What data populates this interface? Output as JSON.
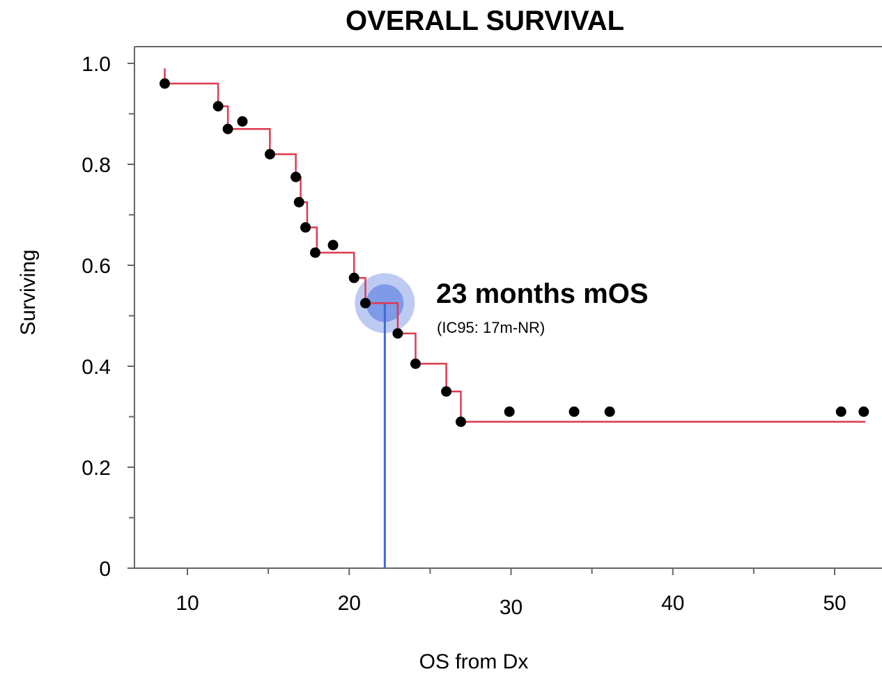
{
  "chart_data": {
    "type": "line",
    "title": "OVERALL SURVIVAL",
    "xlabel": "OS from Dx",
    "ylabel": "Surviving",
    "xlim": [
      6.4,
      52.8
    ],
    "ylim": [
      0,
      1.03
    ],
    "x_ticks": [
      10,
      20,
      30,
      40,
      50
    ],
    "x_minor_ticks": [
      15,
      25,
      35,
      45
    ],
    "y_ticks": [
      0,
      0.2,
      0.4,
      0.6,
      0.8,
      1.0
    ],
    "y_tick_labels": [
      "0",
      "0.2",
      "0.4",
      "0.6",
      "0.8",
      "1.0"
    ],
    "y_minor_ticks": [
      0.1,
      0.3,
      0.5,
      0.7,
      0.9
    ],
    "grid": false,
    "series": [
      {
        "kind": "step",
        "color": "#e0394e",
        "x": [
          8.6,
          8.6,
          11.9,
          11.9,
          12.5,
          12.5,
          15.1,
          15.1,
          16.7,
          16.7,
          17.0,
          17.0,
          17.4,
          17.4,
          18.0,
          18.0,
          20.3,
          20.3,
          21.0,
          21.0,
          23.0,
          23.0,
          24.1,
          24.1,
          26.0,
          26.0,
          26.9,
          26.9,
          51.9
        ],
        "y": [
          0.99,
          0.96,
          0.96,
          0.915,
          0.915,
          0.87,
          0.87,
          0.82,
          0.82,
          0.775,
          0.775,
          0.725,
          0.725,
          0.675,
          0.675,
          0.625,
          0.625,
          0.575,
          0.575,
          0.525,
          0.525,
          0.465,
          0.465,
          0.405,
          0.405,
          0.35,
          0.35,
          0.29,
          0.29
        ]
      },
      {
        "kind": "scatter",
        "color": "#000000",
        "x": [
          8.6,
          11.9,
          12.5,
          13.4,
          15.1,
          16.7,
          16.9,
          17.3,
          17.9,
          19.0,
          20.3,
          21.0,
          23.0,
          24.1,
          26.0,
          26.9,
          29.9,
          33.9,
          36.1,
          50.4,
          51.8
        ],
        "y": [
          0.96,
          0.915,
          0.87,
          0.885,
          0.82,
          0.775,
          0.725,
          0.675,
          0.625,
          0.64,
          0.575,
          0.525,
          0.465,
          0.405,
          0.35,
          0.29,
          0.31,
          0.31,
          0.31,
          0.31,
          0.31
        ]
      }
    ],
    "median": {
      "x": 22.2,
      "y": 0.525,
      "line_color": "#4169d9",
      "marker_color": "#4169d9",
      "label": "23 months mOS",
      "sublabel": "(IC95: 17m-NR)"
    }
  }
}
